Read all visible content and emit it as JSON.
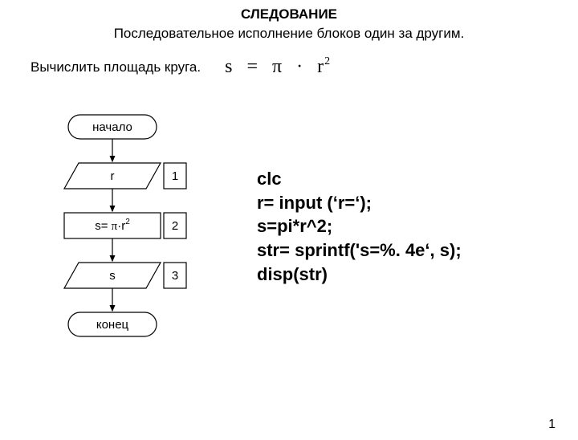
{
  "title": "СЛЕДОВАНИЕ",
  "subtitle": "Последовательное исполнение блоков один за другим.",
  "task_text": "Вычислить площадь круга.",
  "formula": {
    "lhs": "s",
    "op1": "=",
    "pi": "π",
    "op2": "·",
    "r": "r",
    "exp": "2"
  },
  "flowchart": {
    "stroke": "#000000",
    "fill": "#ffffff",
    "font_size": 15,
    "start": "начало",
    "end": "конец",
    "blocks": [
      {
        "type": "io",
        "label_main": "r",
        "num": "1"
      },
      {
        "type": "process",
        "label_main": "s= ",
        "pi": "π",
        "dot": "·",
        "r": "r",
        "exp": "2",
        "num": "2"
      },
      {
        "type": "io",
        "label_main": "s",
        "num": "3"
      }
    ],
    "terminal_w": 110,
    "terminal_h": 30,
    "block_w": 120,
    "block_h": 32,
    "num_box_w": 28,
    "skew": 18,
    "arrow_len": 28
  },
  "code": [
    "clc",
    "r= input (‘r=‘);",
    "s=pi*r^2;",
    "str= sprintf('s=%. 4e‘, s);",
    "disp(str)"
  ],
  "page_number": "1"
}
